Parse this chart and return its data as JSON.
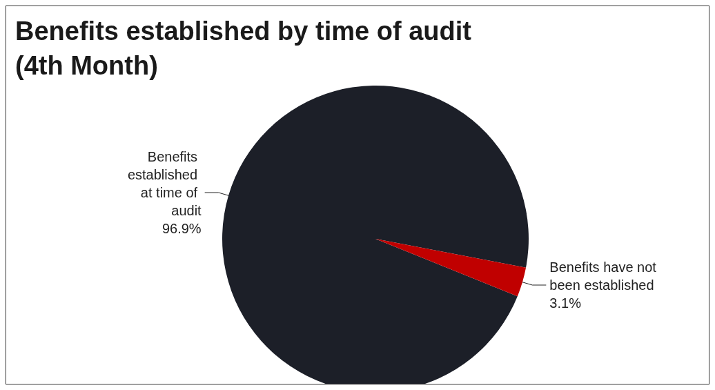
{
  "chart_data": {
    "type": "pie",
    "title": "Benefits established by time of audit (4th Month)",
    "categories": [
      "Benefits established at time of audit",
      "Benefits have not been established"
    ],
    "values": [
      96.9,
      3.1
    ],
    "colors": [
      "#1c1f28",
      "#c00000"
    ],
    "value_labels": [
      "96.9%",
      "3.1%"
    ],
    "legend": false
  }
}
